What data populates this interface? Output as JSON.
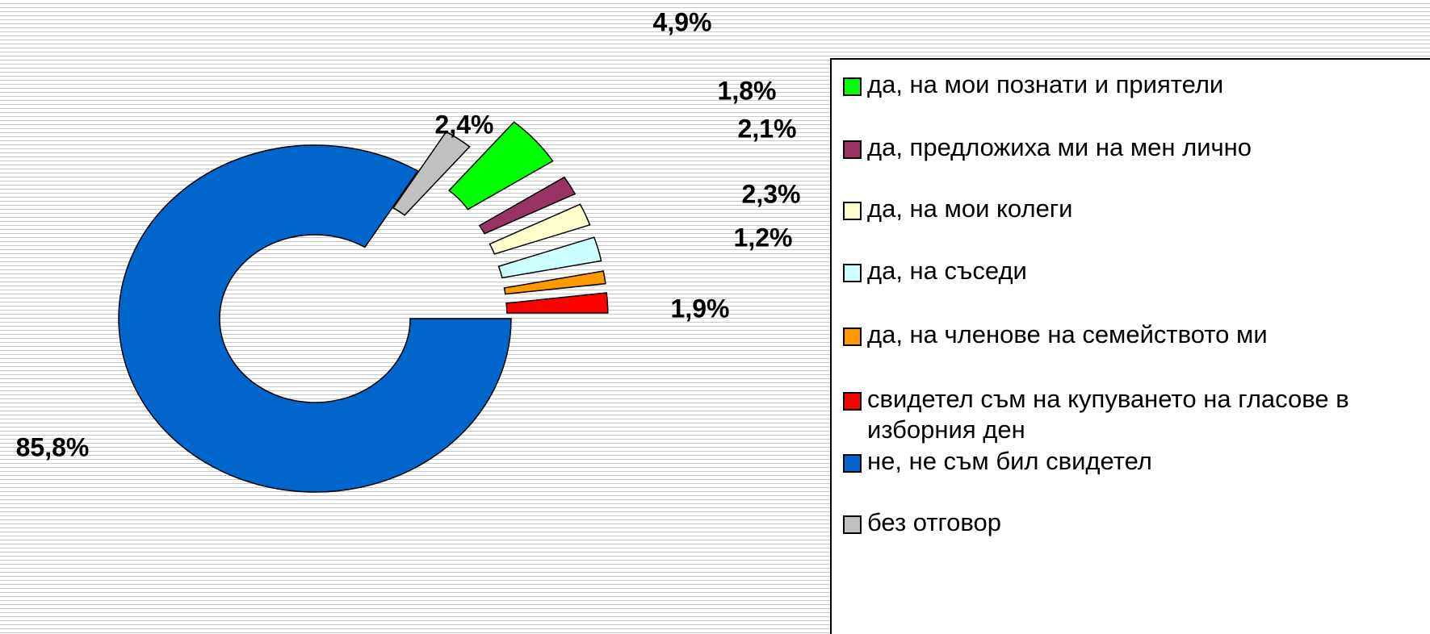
{
  "chart_data": {
    "type": "donut",
    "categories": [
      "да, на мои познати и приятели",
      "да, предложиха ми на мен лично",
      "да, на мои колеги",
      "да, на съседи",
      "да, на членове на семейството ми",
      "свидетел съм на купуването на гласове в изборния ден",
      "не, не съм бил свидетел",
      "без отговор"
    ],
    "values": [
      4.9,
      1.8,
      2.1,
      2.3,
      1.2,
      1.9,
      85.8,
      2.4
    ],
    "value_labels": [
      "4,9%",
      "1,8%",
      "2,1%",
      "2,3%",
      "1,2%",
      "1,9%",
      "85,8%",
      "2,4%"
    ],
    "colors": [
      "#00ff00",
      "#993366",
      "#ffffcc",
      "#ccffff",
      "#ff9900",
      "#ff0000",
      "#0066cc",
      "#c0c0c0"
    ],
    "legend": "right"
  }
}
